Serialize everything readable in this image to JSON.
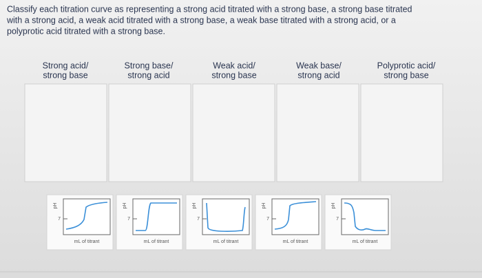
{
  "question_lines": [
    "Classify each titration curve as representing a strong acid titrated with a strong base, a strong base titrated",
    "with a strong acid, a weak acid titrated with a strong base, a weak base titrated with a strong acid, or a",
    "polyprotic acid titrated with a strong base."
  ],
  "bins": [
    {
      "label_lines": [
        "Strong acid/",
        "strong base"
      ]
    },
    {
      "label_lines": [
        "Strong base/",
        "strong acid"
      ]
    },
    {
      "label_lines": [
        "Weak acid/",
        "strong base"
      ]
    },
    {
      "label_lines": [
        "Weak base/",
        "strong acid"
      ]
    },
    {
      "label_lines": [
        "Polyprotic acid/",
        "strong base"
      ]
    }
  ],
  "cards": [
    {
      "y_label": "pH",
      "y_tick": "7",
      "x_label": "mL of titrant"
    },
    {
      "y_label": "pH",
      "y_tick": "7",
      "x_label": "mL of titrant"
    },
    {
      "y_label": "pH",
      "y_tick": "7",
      "x_label": "mL of titrant"
    },
    {
      "y_label": "pH",
      "y_tick": "7",
      "x_label": "mL of titrant"
    },
    {
      "y_label": "pH",
      "y_tick": "7",
      "x_label": "mL of titrant"
    }
  ]
}
